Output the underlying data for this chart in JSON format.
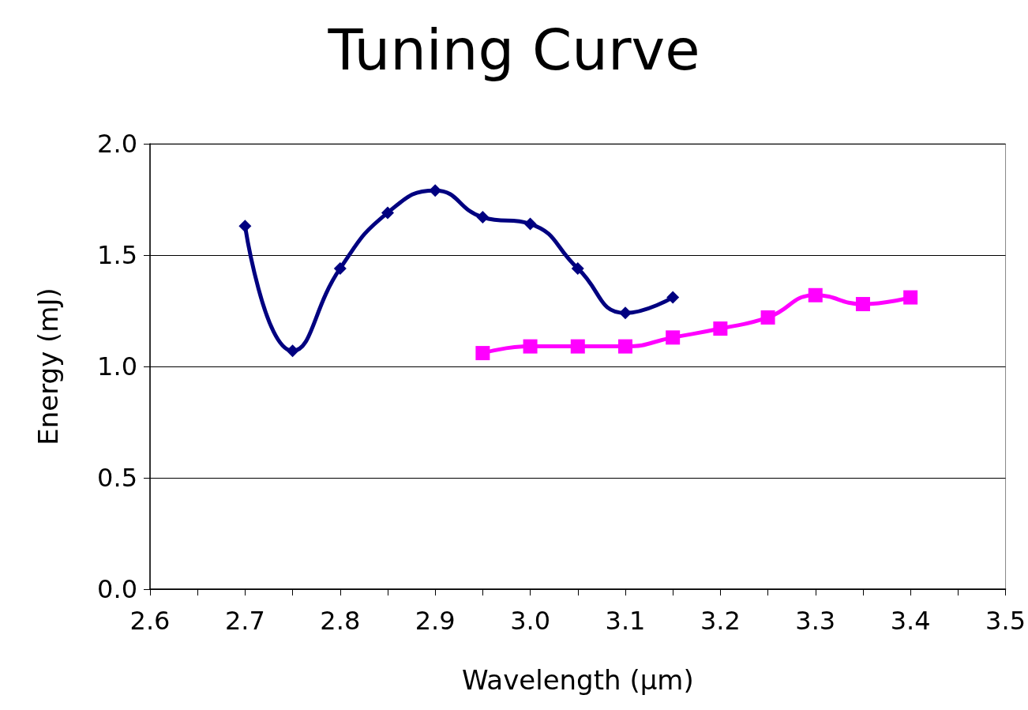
{
  "chart_data": {
    "type": "line",
    "title": "Tuning Curve",
    "xlabel": "Wavelength (μm)",
    "ylabel": "Energy (mJ)",
    "series": [
      {
        "color": "#000080",
        "marker": "diamond",
        "x": [
          2.7,
          2.75,
          2.8,
          2.85,
          2.9,
          2.95,
          3.0,
          3.05,
          3.1,
          3.15
        ],
        "values": [
          1.63,
          1.07,
          1.44,
          1.69,
          1.79,
          1.67,
          1.64,
          1.44,
          1.24,
          1.31
        ]
      },
      {
        "color": "#ff00ff",
        "marker": "square",
        "x": [
          2.95,
          3.0,
          3.05,
          3.1,
          3.15,
          3.2,
          3.25,
          3.3,
          3.35,
          3.4
        ],
        "values": [
          1.06,
          1.09,
          1.09,
          1.09,
          1.13,
          1.17,
          1.22,
          1.32,
          1.28,
          1.31
        ]
      }
    ],
    "xlim": [
      2.6,
      3.5
    ],
    "xticks": [
      {
        "value": 2.6,
        "label": "2.6"
      },
      {
        "value": 2.65,
        "label": null
      },
      {
        "value": 2.7,
        "label": "2.7"
      },
      {
        "value": 2.75,
        "label": null
      },
      {
        "value": 2.8,
        "label": "2.8"
      },
      {
        "value": 2.85,
        "label": null
      },
      {
        "value": 2.9,
        "label": "2.9"
      },
      {
        "value": 2.95,
        "label": null
      },
      {
        "value": 3.0,
        "label": "3.0"
      },
      {
        "value": 3.05,
        "label": null
      },
      {
        "value": 3.1,
        "label": "3.1"
      },
      {
        "value": 3.15,
        "label": null
      },
      {
        "value": 3.2,
        "label": "3.2"
      },
      {
        "value": 3.25,
        "label": null
      },
      {
        "value": 3.3,
        "label": "3.3"
      },
      {
        "value": 3.35,
        "label": null
      },
      {
        "value": 3.4,
        "label": "3.4"
      },
      {
        "value": 3.45,
        "label": null
      },
      {
        "value": 3.5,
        "label": "3.5"
      }
    ],
    "ylim": [
      0,
      2
    ],
    "yticks": [
      {
        "value": 0,
        "label": "0.0"
      },
      {
        "value": 0.5,
        "label": "0.5"
      },
      {
        "value": 1,
        "label": "1.0"
      },
      {
        "value": 1.5,
        "label": "1.5"
      },
      {
        "value": 2,
        "label": "2.0"
      }
    ],
    "grid": "y",
    "line_style": "solid"
  }
}
